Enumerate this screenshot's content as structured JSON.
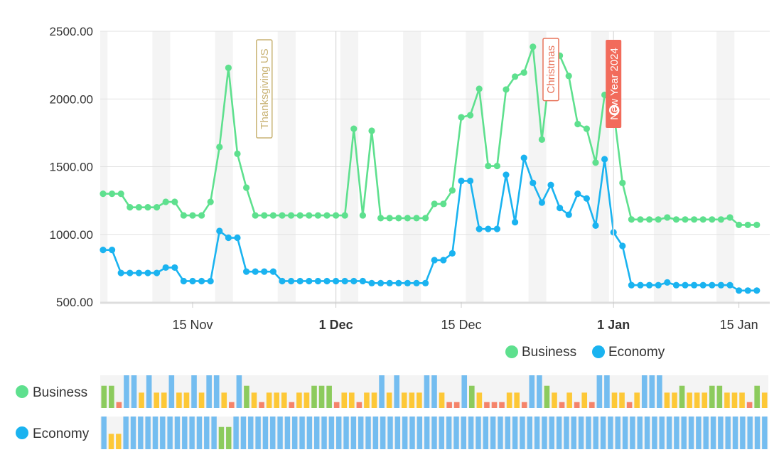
{
  "chart_data": {
    "type": "line",
    "y_axis": {
      "min": 500,
      "max": 2500,
      "ticks": [
        "500.00",
        "1000.00",
        "1500.00",
        "2000.00",
        "2500.00"
      ],
      "grid": true
    },
    "x_axis": {
      "start": "2023-11-05",
      "end": "2024-01-16",
      "ticks": [
        {
          "date": "2023-11-15",
          "label": "15 Nov",
          "bold": false
        },
        {
          "date": "2023-12-01",
          "label": "1 Dec",
          "bold": true
        },
        {
          "date": "2023-12-15",
          "label": "15 Dec",
          "bold": false
        },
        {
          "date": "2024-01-01",
          "label": "1 Jan",
          "bold": true
        },
        {
          "date": "2024-01-15",
          "label": "15 Jan",
          "bold": false
        }
      ]
    },
    "annotations": [
      {
        "date": "2023-11-23",
        "label": "Thanksgiving US",
        "color": "#c8b273",
        "style": "outline"
      },
      {
        "date": "2023-12-25",
        "label": "Christmas",
        "color": "#e8735a",
        "style": "outline"
      },
      {
        "date": "2024-01-01",
        "label": "New Year 2024",
        "color": "#f26b5b",
        "style": "filled"
      }
    ],
    "series": [
      {
        "name": "Business",
        "color": "#5ee08e",
        "values": [
          [
            "2023-11-05",
            1300
          ],
          [
            "2023-11-06",
            1300
          ],
          [
            "2023-11-07",
            1300
          ],
          [
            "2023-11-08",
            1200
          ],
          [
            "2023-11-09",
            1200
          ],
          [
            "2023-11-10",
            1200
          ],
          [
            "2023-11-11",
            1200
          ],
          [
            "2023-11-12",
            1240
          ],
          [
            "2023-11-13",
            1240
          ],
          [
            "2023-11-14",
            1140
          ],
          [
            "2023-11-15",
            1140
          ],
          [
            "2023-11-16",
            1140
          ],
          [
            "2023-11-17",
            1240
          ],
          [
            "2023-11-18",
            1645
          ],
          [
            "2023-11-19",
            2230
          ],
          [
            "2023-11-20",
            1595
          ],
          [
            "2023-11-21",
            1345
          ],
          [
            "2023-11-22",
            1140
          ],
          [
            "2023-11-23",
            1140
          ],
          [
            "2023-11-24",
            1140
          ],
          [
            "2023-11-25",
            1140
          ],
          [
            "2023-11-26",
            1140
          ],
          [
            "2023-11-27",
            1140
          ],
          [
            "2023-11-28",
            1140
          ],
          [
            "2023-11-29",
            1140
          ],
          [
            "2023-11-30",
            1140
          ],
          [
            "2023-12-01",
            1140
          ],
          [
            "2023-12-02",
            1140
          ],
          [
            "2023-12-03",
            1780
          ],
          [
            "2023-12-04",
            1140
          ],
          [
            "2023-12-05",
            1765
          ],
          [
            "2023-12-06",
            1120
          ],
          [
            "2023-12-07",
            1120
          ],
          [
            "2023-12-08",
            1120
          ],
          [
            "2023-12-09",
            1120
          ],
          [
            "2023-12-10",
            1120
          ],
          [
            "2023-12-11",
            1120
          ],
          [
            "2023-12-12",
            1225
          ],
          [
            "2023-12-13",
            1225
          ],
          [
            "2023-12-14",
            1325
          ],
          [
            "2023-12-15",
            1865
          ],
          [
            "2023-12-16",
            1880
          ],
          [
            "2023-12-17",
            2075
          ],
          [
            "2023-12-18",
            1505
          ],
          [
            "2023-12-19",
            1505
          ],
          [
            "2023-12-20",
            2070
          ],
          [
            "2023-12-21",
            2165
          ],
          [
            "2023-12-22",
            2195
          ],
          [
            "2023-12-23",
            2385
          ],
          [
            "2023-12-24",
            1700
          ],
          [
            "2023-12-25",
            2270
          ],
          [
            "2023-12-26",
            2320
          ],
          [
            "2023-12-27",
            2170
          ],
          [
            "2023-12-28",
            1815
          ],
          [
            "2023-12-29",
            1780
          ],
          [
            "2023-12-30",
            1530
          ],
          [
            "2023-12-31",
            2030
          ],
          [
            "2024-01-01",
            1920
          ],
          [
            "2024-01-02",
            1380
          ],
          [
            "2024-01-03",
            1110
          ],
          [
            "2024-01-04",
            1110
          ],
          [
            "2024-01-05",
            1110
          ],
          [
            "2024-01-06",
            1110
          ],
          [
            "2024-01-07",
            1125
          ],
          [
            "2024-01-08",
            1110
          ],
          [
            "2024-01-09",
            1110
          ],
          [
            "2024-01-10",
            1110
          ],
          [
            "2024-01-11",
            1110
          ],
          [
            "2024-01-12",
            1110
          ],
          [
            "2024-01-13",
            1110
          ],
          [
            "2024-01-14",
            1125
          ],
          [
            "2024-01-15",
            1070
          ],
          [
            "2024-01-16",
            1070
          ],
          [
            "2024-01-17",
            1070
          ]
        ]
      },
      {
        "name": "Economy",
        "color": "#1ab3f0",
        "values": [
          [
            "2023-11-05",
            885
          ],
          [
            "2023-11-06",
            885
          ],
          [
            "2023-11-07",
            715
          ],
          [
            "2023-11-08",
            715
          ],
          [
            "2023-11-09",
            715
          ],
          [
            "2023-11-10",
            715
          ],
          [
            "2023-11-11",
            715
          ],
          [
            "2023-11-12",
            755
          ],
          [
            "2023-11-13",
            755
          ],
          [
            "2023-11-14",
            655
          ],
          [
            "2023-11-15",
            655
          ],
          [
            "2023-11-16",
            655
          ],
          [
            "2023-11-17",
            655
          ],
          [
            "2023-11-18",
            1025
          ],
          [
            "2023-11-19",
            975
          ],
          [
            "2023-11-20",
            975
          ],
          [
            "2023-11-21",
            725
          ],
          [
            "2023-11-22",
            725
          ],
          [
            "2023-11-23",
            725
          ],
          [
            "2023-11-24",
            725
          ],
          [
            "2023-11-25",
            655
          ],
          [
            "2023-11-26",
            655
          ],
          [
            "2023-11-27",
            655
          ],
          [
            "2023-11-28",
            655
          ],
          [
            "2023-11-29",
            655
          ],
          [
            "2023-11-30",
            655
          ],
          [
            "2023-12-01",
            655
          ],
          [
            "2023-12-02",
            655
          ],
          [
            "2023-12-03",
            655
          ],
          [
            "2023-12-04",
            655
          ],
          [
            "2023-12-05",
            640
          ],
          [
            "2023-12-06",
            640
          ],
          [
            "2023-12-07",
            640
          ],
          [
            "2023-12-08",
            640
          ],
          [
            "2023-12-09",
            640
          ],
          [
            "2023-12-10",
            640
          ],
          [
            "2023-12-11",
            640
          ],
          [
            "2023-12-12",
            810
          ],
          [
            "2023-12-13",
            810
          ],
          [
            "2023-12-14",
            860
          ],
          [
            "2023-12-15",
            1395
          ],
          [
            "2023-12-16",
            1395
          ],
          [
            "2023-12-17",
            1040
          ],
          [
            "2023-12-18",
            1040
          ],
          [
            "2023-12-19",
            1040
          ],
          [
            "2023-12-20",
            1440
          ],
          [
            "2023-12-21",
            1090
          ],
          [
            "2023-12-22",
            1565
          ],
          [
            "2023-12-23",
            1380
          ],
          [
            "2023-12-24",
            1235
          ],
          [
            "2023-12-25",
            1365
          ],
          [
            "2023-12-26",
            1195
          ],
          [
            "2023-12-27",
            1145
          ],
          [
            "2023-12-28",
            1300
          ],
          [
            "2023-12-29",
            1265
          ],
          [
            "2023-12-30",
            1065
          ],
          [
            "2023-12-31",
            1555
          ],
          [
            "2024-01-01",
            1015
          ],
          [
            "2024-01-02",
            915
          ],
          [
            "2024-01-03",
            625
          ],
          [
            "2024-01-04",
            625
          ],
          [
            "2024-01-05",
            625
          ],
          [
            "2024-01-06",
            625
          ],
          [
            "2024-01-07",
            645
          ],
          [
            "2024-01-08",
            625
          ],
          [
            "2024-01-09",
            625
          ],
          [
            "2024-01-10",
            625
          ],
          [
            "2024-01-11",
            625
          ],
          [
            "2024-01-12",
            625
          ],
          [
            "2024-01-13",
            625
          ],
          [
            "2024-01-14",
            625
          ],
          [
            "2024-01-15",
            585
          ],
          [
            "2024-01-16",
            585
          ],
          [
            "2024-01-17",
            585
          ]
        ]
      }
    ],
    "legend": {
      "placement": "bottom-right",
      "items": [
        "Business",
        "Economy"
      ]
    },
    "status_strips": {
      "colors": {
        "b": "#74bdf0",
        "g": "#8ccb5d",
        "y": "#fdc837",
        "o": "#f5846a"
      },
      "rows": [
        {
          "name": "Business",
          "color": "#5ee08e",
          "levels": "ggobbybyybyybybbyobgyoyyyoyygggoyyoyybybyyybbyoobgyoooyyobbgyoyoyobbyyoybbbyygyyyggyyyogy"
        },
        {
          "name": "Economy",
          "color": "#1ab3f0",
          "levels": "byybbbbbbbbbbbbbggbbbbbbbbbbbbbbbbbbbbbbbbbbbbbbbbbbbbbbbbbbbbbbbbbbbbbbbbbbbbbbbbbbbbbbbbb"
        }
      ]
    }
  }
}
